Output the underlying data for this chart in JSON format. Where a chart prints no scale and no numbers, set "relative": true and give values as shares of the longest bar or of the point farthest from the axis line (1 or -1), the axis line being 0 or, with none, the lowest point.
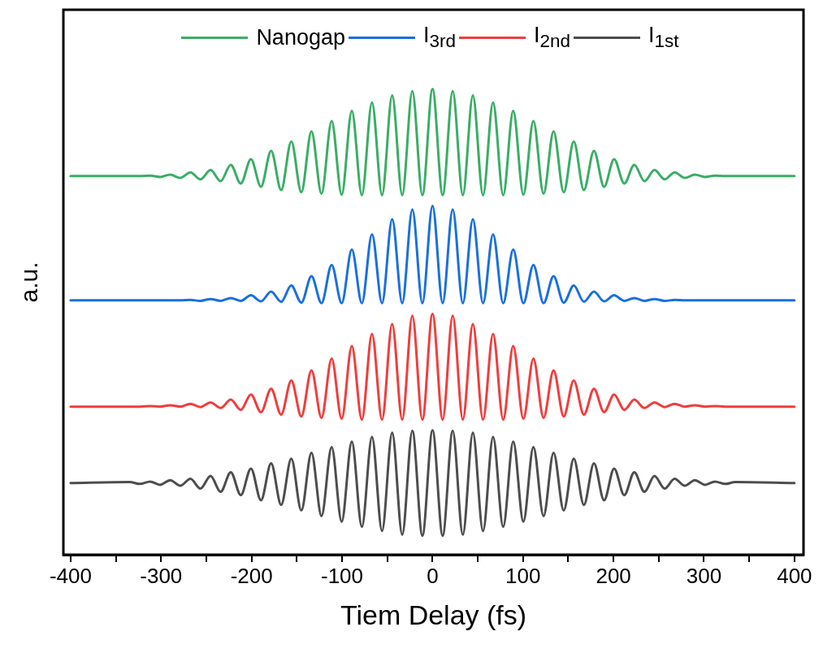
{
  "chart_data": {
    "type": "line",
    "xlabel": "Tiem Delay (fs)",
    "ylabel": "a.u.",
    "relative": true,
    "legend": "top",
    "marker": "none",
    "xlim": [
      -408,
      410
    ],
    "xticks": [
      -400,
      {
        "value": -350,
        "label": null
      },
      -300,
      {
        "value": -250,
        "label": null
      },
      -200,
      {
        "value": -150,
        "label": null
      },
      -100,
      {
        "value": -50,
        "label": null
      },
      0,
      {
        "value": 50,
        "label": null
      },
      100,
      {
        "value": 150,
        "label": null
      },
      200,
      {
        "value": 250,
        "label": null
      },
      300,
      {
        "value": 350,
        "label": null
      },
      400
    ],
    "x": [
      -400,
      -334.5,
      -323.4,
      -312.2,
      -301.1,
      -289.9,
      -278.8,
      -267.6,
      -256.5,
      -245.3,
      -234.2,
      -223.0,
      -211.9,
      -200.7,
      -189.6,
      -178.4,
      -167.3,
      -156.1,
      -145.0,
      -133.8,
      -122.7,
      -111.5,
      -100.4,
      -89.2,
      -78.1,
      -66.9,
      -55.8,
      -44.6,
      -33.5,
      -22.3,
      -11.2,
      0,
      11.2,
      22.3,
      33.5,
      44.6,
      55.8,
      66.9,
      78.1,
      89.2,
      100.4,
      111.5,
      122.7,
      133.8,
      145.0,
      156.1,
      167.3,
      178.4,
      189.6,
      200.7,
      211.9,
      223.0,
      234.2,
      245.3,
      256.5,
      267.6,
      278.8,
      289.9,
      301.1,
      312.2,
      323.4,
      334.5,
      400
    ],
    "series": [
      {
        "name": "Nanogap",
        "color": "#3aad66",
        "values": [
          0.813,
          0.813,
          0.813,
          0.814,
          0.811,
          0.816,
          0.809,
          0.821,
          0.806,
          0.826,
          0.802,
          0.837,
          0.797,
          0.849,
          0.79,
          0.867,
          0.783,
          0.887,
          0.778,
          0.909,
          0.775,
          0.931,
          0.773,
          0.953,
          0.772,
          0.971,
          0.772,
          0.986,
          0.772,
          0.995,
          0.772,
          1,
          0.772,
          0.995,
          0.772,
          0.986,
          0.772,
          0.971,
          0.772,
          0.953,
          0.773,
          0.931,
          0.775,
          0.909,
          0.778,
          0.887,
          0.783,
          0.867,
          0.79,
          0.849,
          0.797,
          0.837,
          0.802,
          0.826,
          0.806,
          0.821,
          0.809,
          0.816,
          0.811,
          0.814,
          0.813,
          0.813,
          0.813
        ]
      },
      {
        "name": "I$_{3rd}$",
        "color": "#1a6fe0",
        "values": [
          0.546,
          0.546,
          0.546,
          0.546,
          0.546,
          0.546,
          0.546,
          0.547,
          0.545,
          0.549,
          0.545,
          0.551,
          0.545,
          0.557,
          0.544,
          0.565,
          0.543,
          0.578,
          0.541,
          0.598,
          0.54,
          0.622,
          0.54,
          0.655,
          0.54,
          0.688,
          0.54,
          0.72,
          0.54,
          0.741,
          0.54,
          0.749,
          0.54,
          0.741,
          0.54,
          0.72,
          0.54,
          0.688,
          0.54,
          0.655,
          0.54,
          0.622,
          0.54,
          0.598,
          0.541,
          0.578,
          0.543,
          0.565,
          0.544,
          0.557,
          0.545,
          0.551,
          0.545,
          0.549,
          0.545,
          0.547,
          0.546,
          0.546,
          0.546,
          0.546,
          0.546,
          0.546,
          0.546
        ]
      },
      {
        "name": "I$_{2nd}$",
        "color": "#f03d3d",
        "values": [
          0.318,
          0.318,
          0.318,
          0.319,
          0.318,
          0.321,
          0.318,
          0.324,
          0.317,
          0.327,
          0.315,
          0.333,
          0.311,
          0.344,
          0.306,
          0.356,
          0.301,
          0.374,
          0.297,
          0.396,
          0.294,
          0.421,
          0.292,
          0.448,
          0.29,
          0.474,
          0.29,
          0.495,
          0.29,
          0.513,
          0.29,
          0.517,
          0.29,
          0.513,
          0.29,
          0.495,
          0.29,
          0.474,
          0.29,
          0.448,
          0.292,
          0.421,
          0.294,
          0.396,
          0.297,
          0.374,
          0.301,
          0.356,
          0.306,
          0.344,
          0.311,
          0.333,
          0.315,
          0.327,
          0.317,
          0.324,
          0.318,
          0.321,
          0.318,
          0.319,
          0.318,
          0.318,
          0.318
        ]
      },
      {
        "name": "I$_{1st}$",
        "color": "#4d4d4d",
        "values": [
          0.154,
          0.156,
          0.152,
          0.157,
          0.15,
          0.16,
          0.148,
          0.163,
          0.142,
          0.169,
          0.135,
          0.177,
          0.128,
          0.185,
          0.117,
          0.196,
          0.107,
          0.206,
          0.095,
          0.219,
          0.083,
          0.231,
          0.071,
          0.243,
          0.06,
          0.253,
          0.051,
          0.262,
          0.043,
          0.266,
          0.041,
          0.267,
          0.041,
          0.266,
          0.043,
          0.262,
          0.051,
          0.253,
          0.06,
          0.243,
          0.071,
          0.231,
          0.083,
          0.219,
          0.095,
          0.206,
          0.107,
          0.196,
          0.117,
          0.185,
          0.128,
          0.177,
          0.135,
          0.169,
          0.142,
          0.163,
          0.148,
          0.16,
          0.15,
          0.157,
          0.152,
          0.156,
          0.154
        ]
      }
    ]
  }
}
